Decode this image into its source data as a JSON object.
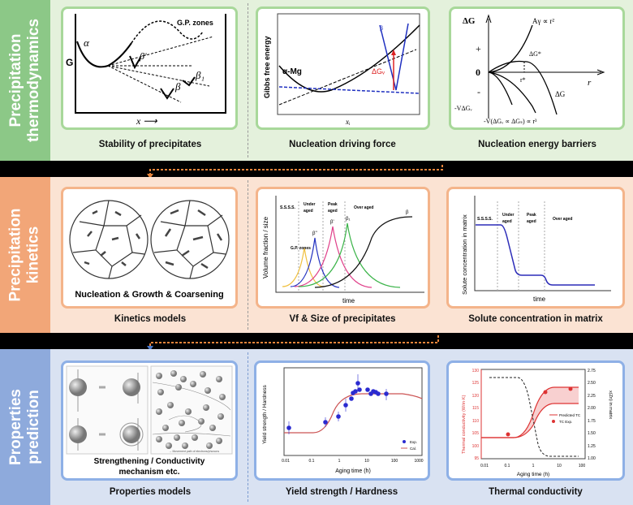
{
  "rows": [
    {
      "label": [
        "Precipitation",
        "thermodynamics"
      ],
      "color": "#8cc887",
      "bg": "#e4f1dc",
      "panels": [
        {
          "caption": "Stability of precipitates",
          "texts": {
            "gp": "G.P. zones",
            "alpha": "α",
            "g": "G",
            "beta_prime": "β'",
            "beta1": "β₁",
            "beta": "β",
            "x": "x ⟶"
          }
        },
        {
          "caption": "Nucleation driving force",
          "texts": {
            "ylabel": "Gibbs free energy",
            "alpha_mg": "α-Mg",
            "dgv": "ΔGᵥ",
            "beta": "β",
            "xi": "xᵢ"
          }
        },
        {
          "caption": "Nucleation energy barriers",
          "texts": {
            "dg": "ΔG",
            "plus": "+",
            "zero": "0",
            "minus": "-",
            "r": "r",
            "agamma": "Aγ ∝ r²",
            "dgstar": "ΔG*",
            "rstar": "r*",
            "dg2": "ΔG",
            "vdgv": "-VΔGᵥ",
            "vdgvs": "-V(ΔGᵥ ∝ ΔGₛ) ∝ r³"
          }
        }
      ]
    },
    {
      "label": [
        "Precipitation",
        "kinetics"
      ],
      "color": "#f2a678",
      "bg": "#fbe3d3",
      "panels": [
        {
          "caption": "Kinetics models",
          "texts": {
            "inner": "Nucleation & Growth & Coarsening"
          }
        },
        {
          "caption": "Vf & Size of precipitates",
          "texts": {
            "ylabel": "Volume fraction / size",
            "xlabel": "time",
            "s1": "S.S.S.S.",
            "s2a": "Under",
            "s2b": "aged",
            "s3a": "Peak",
            "s3b": "aged",
            "s4": "Over aged",
            "gp": "G.P. zones",
            "b2": "β''",
            "b1": "β'",
            "bq": "β₁",
            "b": "β"
          }
        },
        {
          "caption": "Solute concentration in matrix",
          "texts": {
            "ylabel": "Solute concentration in matrix",
            "xlabel": "time",
            "s1": "S.S.S.S.",
            "s2a": "Under",
            "s2b": "aged",
            "s3a": "Peak",
            "s3b": "aged",
            "s4": "Over aged"
          }
        }
      ]
    },
    {
      "label": [
        "Properties",
        "prediction"
      ],
      "color": "#8eaadc",
      "bg": "#d9e2f2",
      "panels": [
        {
          "caption": "Properties models",
          "texts": {
            "inner1": "Strengthening / Conductivity",
            "inner2": "mechanism etc.",
            "legend": "→ Movement path of electrons/phonons"
          }
        },
        {
          "caption": "Yield strength / Hardness",
          "texts": {
            "ylabel": "Yield strength / Hardness",
            "xlabel": "Aging time (h)",
            "ticks": [
              "0.01",
              "0.1",
              "1",
              "10",
              "100",
              "1000"
            ],
            "exp": "Exp.",
            "cal": "Cal."
          }
        },
        {
          "caption": "Thermal conductivity",
          "texts": {
            "ylabel": "Thermal conductivity (W/m·K)",
            "y2label": "x(Zn) in matrix",
            "xlabel": "Aging time (h)",
            "xticks": [
              "0.01",
              "0.1",
              "1",
              "10",
              "100"
            ],
            "yticks": [
              "95",
              "100",
              "105",
              "110",
              "115",
              "120",
              "125",
              "130"
            ],
            "y2ticks": [
              "1.00",
              "1.25",
              "1.50",
              "1.75",
              "2.00",
              "2.25",
              "2.50",
              "2.75"
            ],
            "pred": "Predicted TC",
            "exp": "TC Exp."
          }
        }
      ]
    }
  ]
}
